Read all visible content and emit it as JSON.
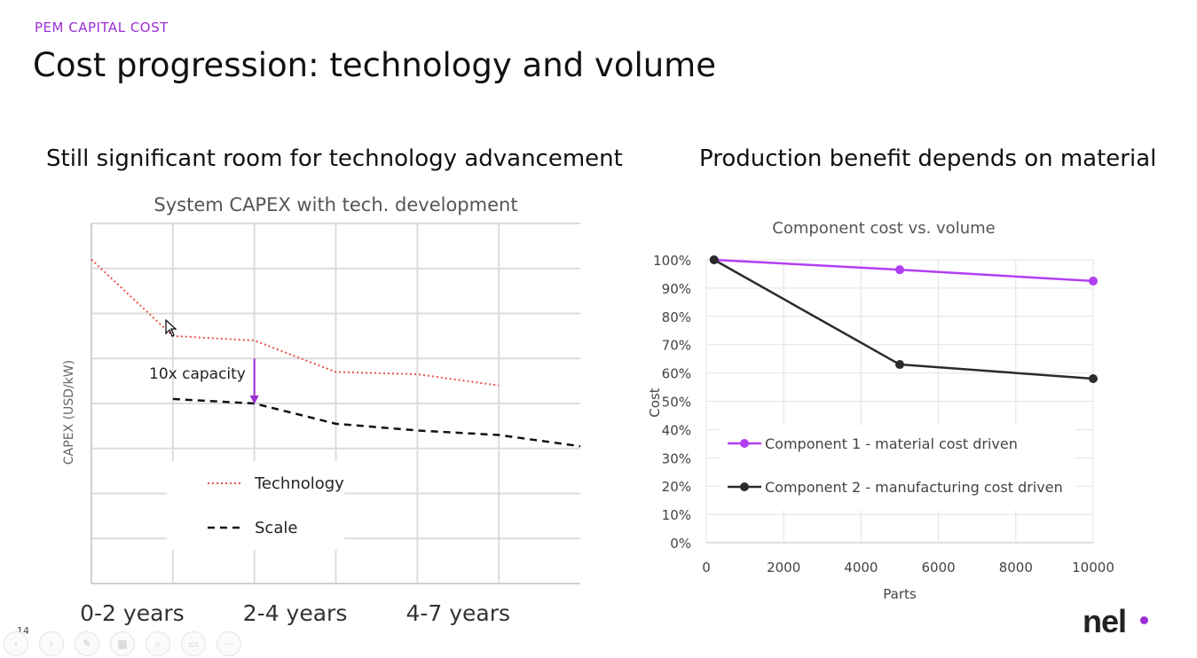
{
  "slide": {
    "kicker": "PEM CAPITAL COST",
    "title": "Cost progression: technology and volume",
    "left_subtitle": "Still significant room for technology advancement",
    "right_subtitle": "Production benefit depends on material",
    "slide_number": "14",
    "logo_text": "nel",
    "brand_color": "#9b2fd3"
  },
  "controls": [
    {
      "name": "prev-slide-button",
      "glyph": "‹"
    },
    {
      "name": "next-slide-button",
      "glyph": "›"
    },
    {
      "name": "pen-tool-button",
      "glyph": "✎"
    },
    {
      "name": "all-slides-button",
      "glyph": "▦"
    },
    {
      "name": "zoom-button",
      "glyph": "⌕"
    },
    {
      "name": "subtitles-button",
      "glyph": "▭"
    },
    {
      "name": "more-options-button",
      "glyph": "⋯"
    }
  ],
  "chart_data": [
    {
      "type": "line",
      "title": "System CAPEX with tech. development",
      "xlabel": "",
      "ylabel": "CAPEX (USD/kW)",
      "categories": [
        "0-2 years",
        "2-4 years",
        "4-7 years"
      ],
      "x_range": [
        0,
        6
      ],
      "y_range": [
        0,
        8
      ],
      "grid": true,
      "legend_position": "lower-left",
      "series": [
        {
          "name": "Technology",
          "color": "#e8524a",
          "style": "dotted",
          "x": [
            0,
            1,
            2,
            3,
            4,
            5
          ],
          "y": [
            7.2,
            5.5,
            5.4,
            4.7,
            4.65,
            4.4
          ]
        },
        {
          "name": "Scale",
          "color": "#111111",
          "style": "dashed",
          "x": [
            1,
            2,
            3,
            4,
            5,
            6
          ],
          "y": [
            4.1,
            4.0,
            3.55,
            3.4,
            3.3,
            3.05
          ]
        }
      ],
      "annotation": {
        "text": "10x capacity",
        "arrow_color": "#9b2fd3",
        "x": 2,
        "y_from": 5.0,
        "y_to": 4.0
      }
    },
    {
      "type": "line",
      "title": "Component cost vs. volume",
      "xlabel": "Parts",
      "ylabel": "Cost",
      "x_ticks": [
        0,
        2000,
        4000,
        6000,
        8000,
        10000
      ],
      "y_ticks": [
        "0%",
        "10%",
        "20%",
        "30%",
        "40%",
        "50%",
        "60%",
        "70%",
        "80%",
        "90%",
        "100%"
      ],
      "x_range": [
        0,
        10000
      ],
      "y_range": [
        0,
        100
      ],
      "grid": true,
      "legend_position": "bottom-left",
      "series": [
        {
          "name": "Component 1 - material cost driven",
          "color": "#b23ff2",
          "x": [
            200,
            5000,
            10000
          ],
          "y": [
            100,
            96.5,
            92.5
          ]
        },
        {
          "name": "Component 2 - manufacturing cost driven",
          "color": "#2b2b2b",
          "x": [
            200,
            5000,
            10000
          ],
          "y": [
            100,
            63,
            58
          ]
        }
      ]
    }
  ]
}
